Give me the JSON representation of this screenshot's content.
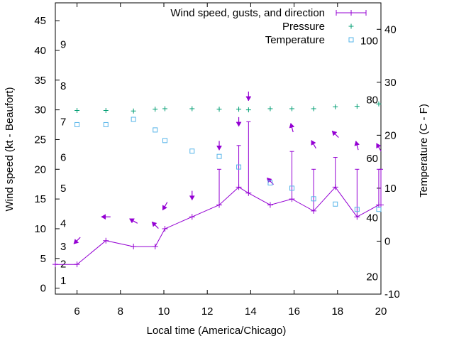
{
  "chart_data": {
    "type": "line",
    "xlabel": "Local time (America/Chicago)",
    "ylabel_left": "Wind speed (kt - Beaufort)",
    "ylabel_right": "Temperature (C - F)",
    "x_range": [
      5,
      20
    ],
    "y_left_range": [
      -1,
      48
    ],
    "y_right_range": [
      -10,
      45
    ],
    "x_ticks": [
      "6",
      "8",
      "10",
      "12",
      "14",
      "16",
      "18",
      "20"
    ],
    "y_left_ticks": [
      "0",
      "5",
      "10",
      "15",
      "20",
      "25",
      "30",
      "35",
      "40",
      "45"
    ],
    "y_right_ticks": [
      "-10",
      "0",
      "10",
      "20",
      "30",
      "40"
    ],
    "beaufort_labels": [
      {
        "label": "1",
        "wind": 1.3
      },
      {
        "label": "2",
        "wind": 4.1
      },
      {
        "label": "3",
        "wind": 7.0
      },
      {
        "label": "4",
        "wind": 10.9
      },
      {
        "label": "5",
        "wind": 16.8
      },
      {
        "label": "6",
        "wind": 22.0
      },
      {
        "label": "7",
        "wind": 28.0
      },
      {
        "label": "8",
        "wind": 34.0
      },
      {
        "label": "9",
        "wind": 41.0
      }
    ],
    "fahrenheit_labels": [
      {
        "label": "20",
        "celsius": -6.7
      },
      {
        "label": "40",
        "celsius": 4.4
      },
      {
        "label": "60",
        "celsius": 15.6
      },
      {
        "label": "80",
        "celsius": 26.7
      },
      {
        "label": "100",
        "celsius": 37.8
      }
    ],
    "legend": [
      "Wind speed, gusts, and direction",
      "Pressure",
      "Temperature"
    ],
    "legend_position": "top-right",
    "colors": {
      "wind": "#9400d3",
      "pressure": "#009e73",
      "temperature": "#56b4e9"
    },
    "wind": {
      "x": [
        5,
        6,
        7.33,
        8.6,
        9.6,
        10.05,
        11.3,
        12.55,
        13.45,
        13.9,
        14.9,
        15.9,
        16.9,
        17.9,
        18.9,
        19.9,
        20
      ],
      "speed": [
        4,
        4,
        8,
        7,
        7,
        10,
        12,
        14,
        17,
        16,
        14,
        15,
        13,
        17,
        12,
        14,
        14
      ],
      "gust": [
        null,
        null,
        null,
        null,
        null,
        null,
        null,
        20,
        24,
        28,
        null,
        23,
        20,
        22,
        20,
        20,
        20
      ]
    },
    "wind_arrows": [
      {
        "x": 6.0,
        "wind": 8.0,
        "dir": 45
      },
      {
        "x": 7.33,
        "wind": 12.0,
        "dir": 90
      },
      {
        "x": 8.6,
        "wind": 11.3,
        "dir": 120
      },
      {
        "x": 9.6,
        "wind": 10.6,
        "dir": 135
      },
      {
        "x": 10.05,
        "wind": 13.8,
        "dir": 30
      },
      {
        "x": 11.3,
        "wind": 15.6,
        "dir": 0
      },
      {
        "x": 12.55,
        "wind": 24.0,
        "dir": 0
      },
      {
        "x": 13.45,
        "wind": 28.0,
        "dir": 0
      },
      {
        "x": 13.9,
        "wind": 32.3,
        "dir": 0
      },
      {
        "x": 14.9,
        "wind": 18.0,
        "dir": 135
      },
      {
        "x": 15.9,
        "wind": 27.0,
        "dir": 165
      },
      {
        "x": 16.9,
        "wind": 24.2,
        "dir": 150
      },
      {
        "x": 17.9,
        "wind": 25.9,
        "dir": 135
      },
      {
        "x": 18.9,
        "wind": 24.0,
        "dir": 165
      },
      {
        "x": 19.9,
        "wind": 23.7,
        "dir": 150
      }
    ],
    "pressure": {
      "x": [
        6,
        7.33,
        8.6,
        9.6,
        10.05,
        11.3,
        12.55,
        13.45,
        13.9,
        14.9,
        15.9,
        16.9,
        17.9,
        18.9,
        19.9
      ],
      "wind_axis_value": [
        29.9,
        29.9,
        29.8,
        30.1,
        30.2,
        30.2,
        30.1,
        30.1,
        30.0,
        30.2,
        30.2,
        30.2,
        30.5,
        30.6,
        31.0
      ]
    },
    "temperature": {
      "x": [
        6,
        7.33,
        8.6,
        9.6,
        10.05,
        11.3,
        12.55,
        13.45,
        14.9,
        15.9,
        16.9,
        17.9,
        18.9,
        19.9
      ],
      "celsius": [
        22.0,
        22.0,
        23.0,
        21.0,
        19.0,
        17.0,
        16.0,
        14.0,
        11.0,
        10.0,
        8.0,
        7.0,
        6.0,
        6.0
      ]
    }
  }
}
